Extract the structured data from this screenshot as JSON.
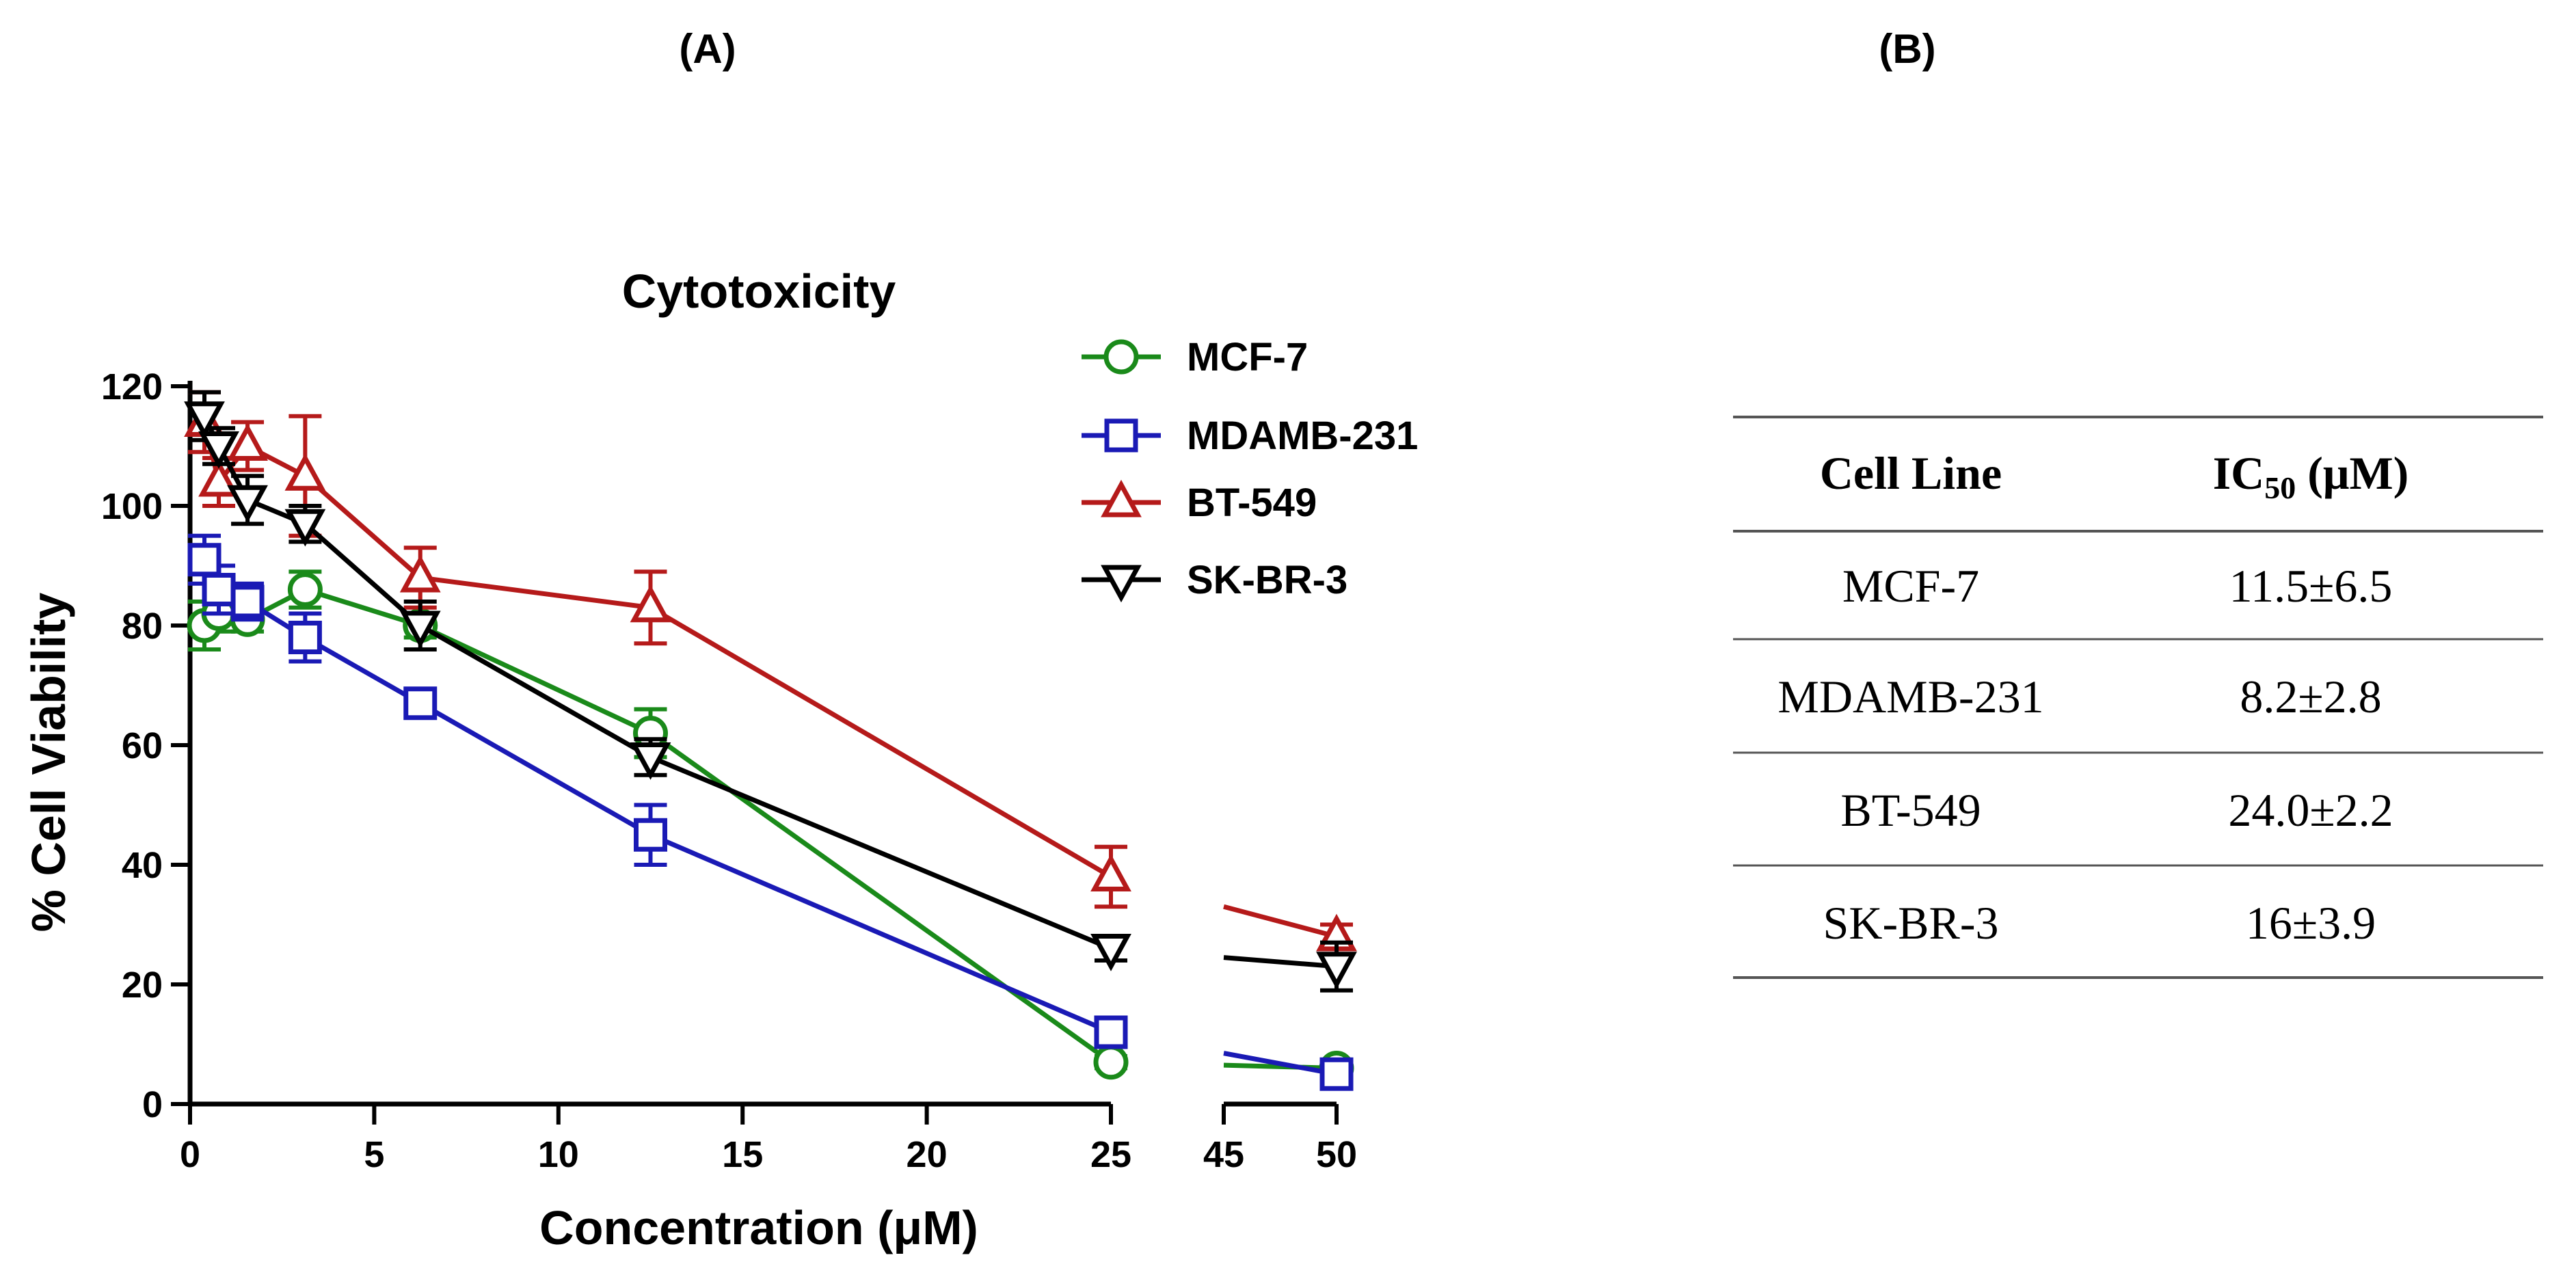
{
  "panels": {
    "a_label": "(A)",
    "b_label": "(B)"
  },
  "chart_data": {
    "type": "line",
    "title": "Cytotoxicity",
    "xlabel": "Concentration (μM)",
    "ylabel": "%  Cell Viability",
    "ylim": [
      0,
      120
    ],
    "y_ticks": [
      0,
      20,
      40,
      60,
      80,
      100,
      120
    ],
    "x_segments": [
      {
        "range": [
          0,
          25
        ],
        "ticks": [
          0,
          5,
          10,
          15,
          20,
          25
        ]
      },
      {
        "range": [
          45,
          50
        ],
        "ticks": [
          45,
          50
        ]
      }
    ],
    "x": [
      0.39,
      0.78,
      1.56,
      3.125,
      6.25,
      12.5,
      25,
      50
    ],
    "legend_position": "top-right",
    "series": [
      {
        "name": "MCF-7",
        "marker": "circle",
        "color": "#1a8a1a",
        "values": [
          80,
          82,
          81,
          86,
          80,
          62,
          7,
          6
        ],
        "errors": [
          4,
          3,
          2,
          3,
          2,
          4,
          1,
          1
        ]
      },
      {
        "name": "MDAMB-231",
        "marker": "square",
        "color": "#1a1ab5",
        "values": [
          91,
          86,
          84,
          78,
          67,
          45,
          12,
          5
        ],
        "errors": [
          4,
          4,
          3,
          4,
          2,
          5,
          2,
          1
        ]
      },
      {
        "name": "BT-549",
        "marker": "triangle-up",
        "color": "#b51a1a",
        "values": [
          114,
          104,
          110,
          105,
          88,
          83,
          38,
          28
        ],
        "errors": [
          5,
          4,
          4,
          10,
          5,
          6,
          5,
          2
        ]
      },
      {
        "name": "SK-BR-3",
        "marker": "triangle-down",
        "color": "#000000",
        "values": [
          115,
          110,
          101,
          97,
          80,
          58,
          26,
          23
        ],
        "errors": [
          4,
          3,
          4,
          3,
          4,
          3,
          2,
          4
        ]
      }
    ]
  },
  "table": {
    "headers": [
      "Cell Line",
      "IC"
    ],
    "ic_sub": "50",
    "ic_unit": " (μM)",
    "rows": [
      [
        "MCF-7",
        "11.5±6.5"
      ],
      [
        "MDAMB-231",
        "8.2±2.8"
      ],
      [
        "BT-549",
        "24.0±2.2"
      ],
      [
        "SK-BR-3",
        "16±3.9"
      ]
    ]
  }
}
